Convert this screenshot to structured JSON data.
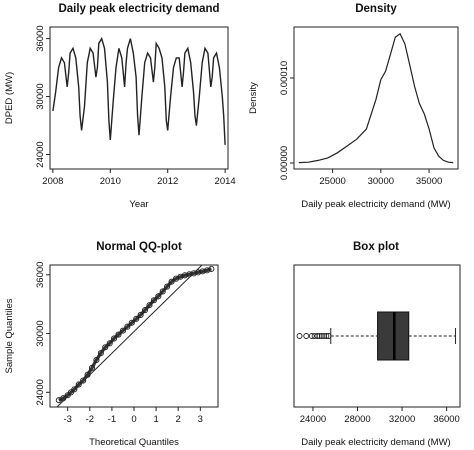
{
  "chart_data": [
    {
      "type": "line",
      "title": "Daily peak electricity demand",
      "xlabel": "Year",
      "ylabel": "DPED (MW)",
      "xlim": [
        2007.9,
        2014.1
      ],
      "ylim": [
        22500,
        37200
      ],
      "xticks": [
        "2008",
        "2010",
        "2012",
        "2014"
      ],
      "yticks": [
        "24000",
        "30000",
        "36000"
      ],
      "series": [
        {
          "x": [
            2008.0,
            2008.1,
            2008.2,
            2008.3,
            2008.4,
            2008.5,
            2008.55,
            2008.6,
            2008.7,
            2008.8,
            2008.9,
            2008.95,
            2009.0,
            2009.1,
            2009.2,
            2009.3,
            2009.4,
            2009.5,
            2009.55,
            2009.6,
            2009.7,
            2009.8,
            2009.9,
            2009.95,
            2010.0,
            2010.1,
            2010.2,
            2010.3,
            2010.4,
            2010.5,
            2010.55,
            2010.6,
            2010.7,
            2010.8,
            2010.9,
            2010.95,
            2011.0,
            2011.1,
            2011.2,
            2011.3,
            2011.4,
            2011.5,
            2011.55,
            2011.6,
            2011.7,
            2011.8,
            2011.9,
            2011.95,
            2012.0,
            2012.1,
            2012.2,
            2012.3,
            2012.4,
            2012.5,
            2012.55,
            2012.6,
            2012.7,
            2012.8,
            2012.9,
            2012.95,
            2013.0,
            2013.1,
            2013.2,
            2013.3,
            2013.4,
            2013.5,
            2013.55,
            2013.6,
            2013.7,
            2013.8,
            2013.9,
            2013.95,
            2014.0
          ],
          "y": [
            28500,
            30500,
            33000,
            34000,
            33500,
            31000,
            32500,
            34500,
            35000,
            34000,
            31000,
            28000,
            26500,
            29000,
            33500,
            35000,
            34500,
            32000,
            33000,
            35500,
            36000,
            35000,
            31500,
            27500,
            25500,
            29500,
            33000,
            35000,
            34000,
            31000,
            33500,
            35000,
            36000,
            34500,
            32000,
            28000,
            26000,
            30000,
            33500,
            34500,
            34000,
            31500,
            33000,
            35500,
            35000,
            34000,
            31000,
            27500,
            26500,
            30000,
            33000,
            34000,
            34000,
            31000,
            32500,
            34500,
            35000,
            33500,
            30500,
            28000,
            27000,
            30000,
            33500,
            35000,
            34500,
            31000,
            32000,
            34000,
            34500,
            33000,
            30000,
            28000,
            25000
          ]
        }
      ]
    },
    {
      "type": "line",
      "title": "Density",
      "xlabel": "Daily peak electricity demand (MW)",
      "ylabel": "Density",
      "xlim": [
        21000,
        38000
      ],
      "ylim": [
        0,
        0.00016
      ],
      "xticks": [
        "25000",
        "30000",
        "35000"
      ],
      "yticks": [
        "0.00000",
        "0.00010"
      ],
      "series": [
        {
          "x": [
            21500,
            22500,
            23500,
            24500,
            25500,
            26500,
            27500,
            28500,
            29500,
            30000,
            30500,
            31000,
            31500,
            32000,
            32500,
            33000,
            33500,
            34000,
            34500,
            35000,
            35500,
            36000,
            36500,
            37000,
            37500
          ],
          "y": [
            5e-07,
            1e-06,
            3e-06,
            6e-06,
            1.2e-05,
            2e-05,
            2.8e-05,
            4e-05,
            7.5e-05,
            9.8e-05,
            0.000108,
            0.000128,
            0.000148,
            0.000152,
            0.00014,
            0.000115,
            9e-05,
            7e-05,
            5.8e-05,
            4e-05,
            1.8e-05,
            8e-06,
            3e-06,
            1e-06,
            5e-07
          ]
        }
      ]
    },
    {
      "type": "scatter",
      "title": "Normal QQ-plot",
      "xlabel": "Theoretical Quantiles",
      "ylabel": "Sample Quantiles",
      "xlim": [
        -3.8,
        3.8
      ],
      "ylim": [
        22500,
        37000
      ],
      "xticks": [
        "-3",
        "-2",
        "-1",
        "0",
        "1",
        "2",
        "3"
      ],
      "yticks": [
        "24000",
        "30000",
        "36000"
      ],
      "reference_line": {
        "x": [
          -3.8,
          3.8
        ],
        "y": [
          21800,
          38600
        ]
      },
      "series": [
        {
          "x": [
            -3.4,
            -3.2,
            -3.0,
            -2.85,
            -2.7,
            -2.5,
            -2.3,
            -2.1,
            -1.9,
            -1.7,
            -1.5,
            -1.3,
            -1.1,
            -0.9,
            -0.7,
            -0.5,
            -0.3,
            -0.1,
            0.1,
            0.3,
            0.5,
            0.7,
            0.9,
            1.1,
            1.3,
            1.5,
            1.7,
            1.9,
            2.1,
            2.3,
            2.5,
            2.7,
            2.9,
            3.1,
            3.3,
            3.5
          ],
          "y": [
            23200,
            23400,
            23700,
            24000,
            24300,
            24800,
            25200,
            25800,
            26500,
            27300,
            28000,
            28600,
            29000,
            29500,
            29900,
            30300,
            30700,
            31100,
            31500,
            31900,
            32400,
            32900,
            33400,
            33800,
            34300,
            34800,
            35300,
            35600,
            35800,
            35950,
            36050,
            36150,
            36250,
            36350,
            36450,
            36600
          ]
        }
      ]
    },
    {
      "type": "box",
      "title": "Box plot",
      "xlabel": "Daily peak electricity demand (MW)",
      "xlim": [
        22300,
        37200
      ],
      "xticks": [
        "24000",
        "28000",
        "32000",
        "36000"
      ],
      "min_whisker": 25600,
      "q1": 29800,
      "median": 31300,
      "q3": 32600,
      "max_whisker": 36800,
      "outliers": [
        22800,
        23400,
        23900,
        24150,
        24400,
        24600,
        24800,
        25000,
        25200,
        25400
      ]
    }
  ]
}
